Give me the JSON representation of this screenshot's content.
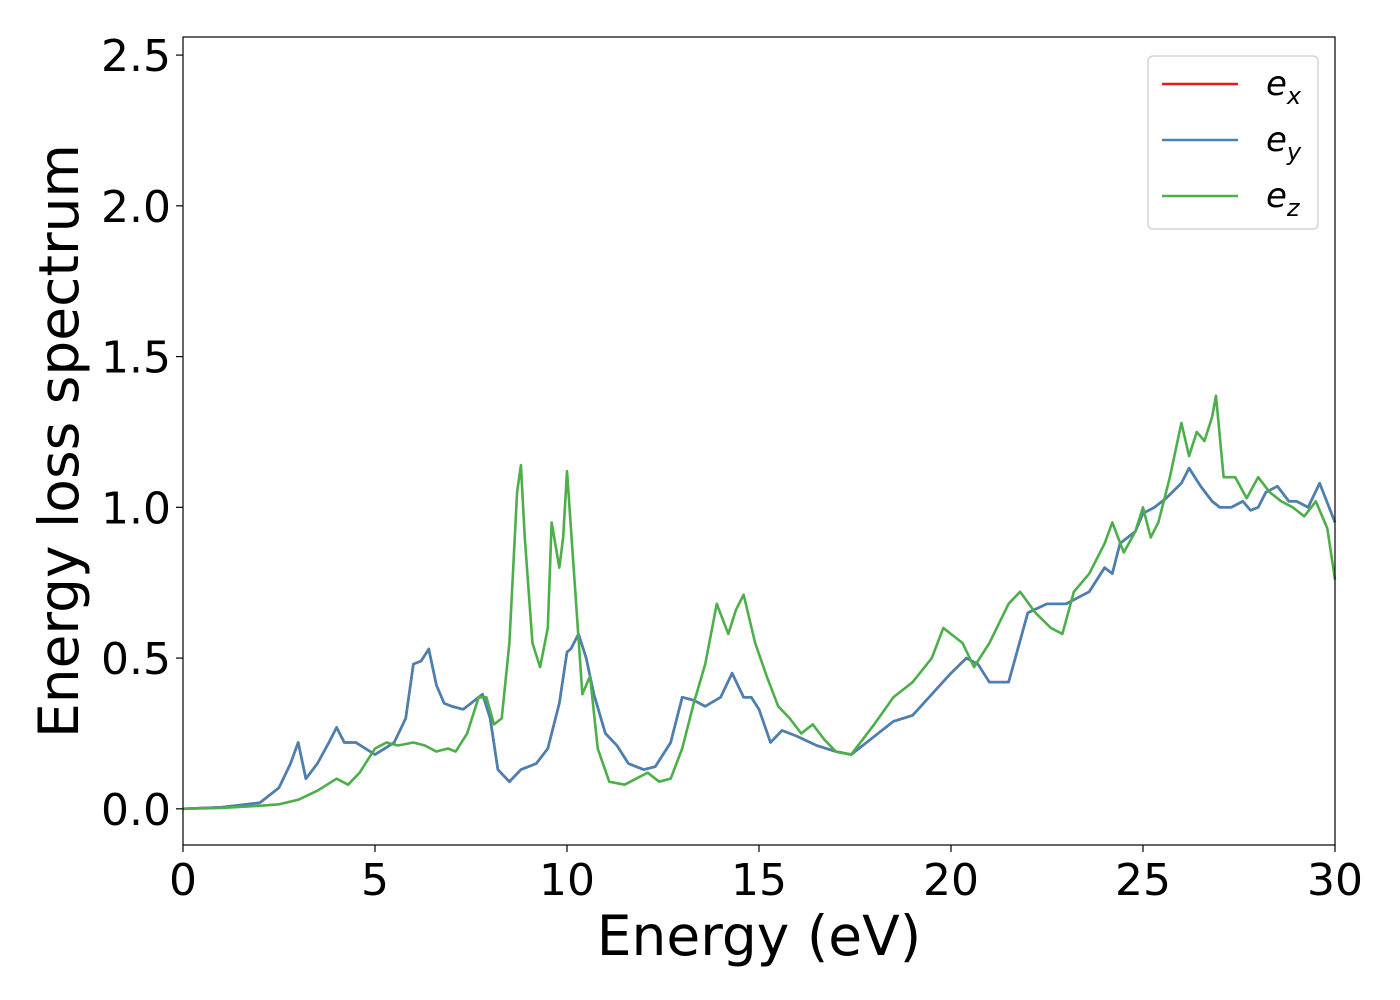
{
  "chart_data": {
    "type": "line",
    "xlabel": "Energy (eV)",
    "ylabel": "Energy loss spectrum",
    "xlim": [
      0,
      30
    ],
    "ylim": [
      -0.12,
      2.56
    ],
    "x_ticks": [
      "0",
      "5",
      "10",
      "15",
      "20",
      "25",
      "30"
    ],
    "y_ticks": [
      "0.0",
      "0.5",
      "1.0",
      "1.5",
      "2.0",
      "2.5"
    ],
    "x_tick_values": [
      0,
      5,
      10,
      15,
      20,
      25,
      30
    ],
    "y_tick_values": [
      0.0,
      0.5,
      1.0,
      1.5,
      2.0,
      2.5
    ],
    "grid": false,
    "legend_position": "top-right",
    "series": [
      {
        "name": "e_x",
        "label_base": "e",
        "label_sub": "x",
        "color": "#e41a1c",
        "x": [
          0,
          1,
          2,
          2.5,
          2.8,
          3.0,
          3.2,
          3.5,
          3.8,
          4.0,
          4.2,
          4.5,
          5.0,
          5.5,
          5.8,
          6.0,
          6.2,
          6.4,
          6.6,
          6.8,
          7.0,
          7.3,
          7.6,
          7.8,
          8.0,
          8.2,
          8.5,
          8.8,
          9.2,
          9.5,
          9.8,
          10.0,
          10.1,
          10.3,
          10.5,
          10.7,
          11.0,
          11.3,
          11.6,
          12.0,
          12.3,
          12.7,
          13.0,
          13.3,
          13.6,
          14.0,
          14.3,
          14.6,
          14.8,
          15.0,
          15.3,
          15.6,
          16.0,
          16.5,
          17.0,
          17.4,
          18.0,
          18.5,
          19.0,
          19.5,
          20.0,
          20.4,
          20.7,
          21.0,
          21.5,
          22.0,
          22.5,
          23.0,
          23.3,
          23.6,
          24.0,
          24.2,
          24.4,
          24.8,
          25.0,
          25.3,
          25.6,
          26.0,
          26.2,
          26.5,
          26.8,
          27.0,
          27.3,
          27.6,
          27.8,
          28.0,
          28.2,
          28.5,
          28.8,
          29.0,
          29.3,
          29.6,
          30.0
        ],
        "y": [
          0,
          0.005,
          0.02,
          0.07,
          0.15,
          0.22,
          0.1,
          0.15,
          0.22,
          0.27,
          0.22,
          0.22,
          0.18,
          0.22,
          0.3,
          0.48,
          0.49,
          0.53,
          0.41,
          0.35,
          0.34,
          0.33,
          0.36,
          0.38,
          0.3,
          0.13,
          0.09,
          0.13,
          0.15,
          0.2,
          0.35,
          0.52,
          0.53,
          0.58,
          0.5,
          0.38,
          0.25,
          0.21,
          0.15,
          0.13,
          0.14,
          0.22,
          0.37,
          0.36,
          0.34,
          0.37,
          0.45,
          0.37,
          0.37,
          0.33,
          0.22,
          0.26,
          0.24,
          0.21,
          0.19,
          0.18,
          0.24,
          0.29,
          0.31,
          0.38,
          0.45,
          0.5,
          0.48,
          0.42,
          0.42,
          0.65,
          0.68,
          0.68,
          0.7,
          0.72,
          0.8,
          0.78,
          0.88,
          0.92,
          0.98,
          1.0,
          1.03,
          1.08,
          1.13,
          1.07,
          1.02,
          1.0,
          1.0,
          1.02,
          0.99,
          1.0,
          1.05,
          1.07,
          1.02,
          1.02,
          1.0,
          1.08,
          0.95
        ]
      },
      {
        "name": "e_y",
        "label_base": "e",
        "label_sub": "y",
        "color": "#4682b4",
        "x": [
          0,
          1,
          2,
          2.5,
          2.8,
          3.0,
          3.2,
          3.5,
          3.8,
          4.0,
          4.2,
          4.5,
          5.0,
          5.5,
          5.8,
          6.0,
          6.2,
          6.4,
          6.6,
          6.8,
          7.0,
          7.3,
          7.6,
          7.8,
          8.0,
          8.2,
          8.5,
          8.8,
          9.2,
          9.5,
          9.8,
          10.0,
          10.1,
          10.3,
          10.5,
          10.7,
          11.0,
          11.3,
          11.6,
          12.0,
          12.3,
          12.7,
          13.0,
          13.3,
          13.6,
          14.0,
          14.3,
          14.6,
          14.8,
          15.0,
          15.3,
          15.6,
          16.0,
          16.5,
          17.0,
          17.4,
          18.0,
          18.5,
          19.0,
          19.5,
          20.0,
          20.4,
          20.7,
          21.0,
          21.5,
          22.0,
          22.5,
          23.0,
          23.3,
          23.6,
          24.0,
          24.2,
          24.4,
          24.8,
          25.0,
          25.3,
          25.6,
          26.0,
          26.2,
          26.5,
          26.8,
          27.0,
          27.3,
          27.6,
          27.8,
          28.0,
          28.2,
          28.5,
          28.8,
          29.0,
          29.3,
          29.6,
          30.0
        ],
        "y": [
          0,
          0.005,
          0.02,
          0.07,
          0.15,
          0.22,
          0.1,
          0.15,
          0.22,
          0.27,
          0.22,
          0.22,
          0.18,
          0.22,
          0.3,
          0.48,
          0.49,
          0.53,
          0.41,
          0.35,
          0.34,
          0.33,
          0.36,
          0.38,
          0.3,
          0.13,
          0.09,
          0.13,
          0.15,
          0.2,
          0.35,
          0.52,
          0.53,
          0.58,
          0.5,
          0.38,
          0.25,
          0.21,
          0.15,
          0.13,
          0.14,
          0.22,
          0.37,
          0.36,
          0.34,
          0.37,
          0.45,
          0.37,
          0.37,
          0.33,
          0.22,
          0.26,
          0.24,
          0.21,
          0.19,
          0.18,
          0.24,
          0.29,
          0.31,
          0.38,
          0.45,
          0.5,
          0.48,
          0.42,
          0.42,
          0.65,
          0.68,
          0.68,
          0.7,
          0.72,
          0.8,
          0.78,
          0.88,
          0.92,
          0.98,
          1.0,
          1.03,
          1.08,
          1.13,
          1.07,
          1.02,
          1.0,
          1.0,
          1.02,
          0.99,
          1.0,
          1.05,
          1.07,
          1.02,
          1.02,
          1.0,
          1.08,
          0.95
        ]
      },
      {
        "name": "e_z",
        "label_base": "e",
        "label_sub": "z",
        "color": "#4daf4a",
        "x": [
          0,
          1,
          2,
          2.5,
          3.0,
          3.5,
          4.0,
          4.3,
          4.6,
          5.0,
          5.3,
          5.6,
          6.0,
          6.3,
          6.6,
          6.9,
          7.1,
          7.4,
          7.7,
          7.9,
          8.1,
          8.3,
          8.5,
          8.7,
          8.8,
          8.9,
          9.1,
          9.3,
          9.5,
          9.6,
          9.8,
          9.9,
          10.0,
          10.2,
          10.4,
          10.6,
          10.8,
          11.1,
          11.5,
          11.8,
          12.1,
          12.4,
          12.7,
          13.0,
          13.3,
          13.6,
          13.9,
          14.2,
          14.4,
          14.6,
          14.9,
          15.2,
          15.5,
          15.8,
          16.1,
          16.4,
          16.7,
          17.0,
          17.4,
          18.0,
          18.5,
          19.0,
          19.5,
          19.8,
          20.0,
          20.3,
          20.6,
          21.0,
          21.5,
          21.8,
          22.2,
          22.6,
          22.9,
          23.2,
          23.6,
          24.0,
          24.2,
          24.5,
          24.8,
          25.0,
          25.2,
          25.4,
          25.7,
          26.0,
          26.2,
          26.4,
          26.6,
          26.8,
          26.9,
          27.1,
          27.4,
          27.7,
          28.0,
          28.3,
          28.6,
          28.9,
          29.2,
          29.5,
          29.8,
          30.0
        ],
        "y": [
          0,
          0.003,
          0.01,
          0.015,
          0.03,
          0.06,
          0.1,
          0.08,
          0.12,
          0.2,
          0.22,
          0.21,
          0.22,
          0.21,
          0.19,
          0.2,
          0.19,
          0.25,
          0.37,
          0.37,
          0.28,
          0.3,
          0.55,
          1.05,
          1.14,
          0.9,
          0.55,
          0.47,
          0.6,
          0.95,
          0.8,
          0.9,
          1.12,
          0.75,
          0.38,
          0.44,
          0.2,
          0.09,
          0.08,
          0.1,
          0.12,
          0.09,
          0.1,
          0.2,
          0.35,
          0.48,
          0.68,
          0.58,
          0.66,
          0.71,
          0.55,
          0.44,
          0.34,
          0.3,
          0.25,
          0.28,
          0.23,
          0.19,
          0.18,
          0.28,
          0.37,
          0.42,
          0.5,
          0.6,
          0.58,
          0.55,
          0.47,
          0.55,
          0.68,
          0.72,
          0.65,
          0.6,
          0.58,
          0.72,
          0.78,
          0.88,
          0.95,
          0.85,
          0.92,
          1.0,
          0.9,
          0.95,
          1.1,
          1.28,
          1.17,
          1.25,
          1.22,
          1.3,
          1.37,
          1.1,
          1.1,
          1.03,
          1.1,
          1.05,
          1.02,
          1.0,
          0.97,
          1.02,
          0.93,
          0.76
        ]
      }
    ]
  }
}
